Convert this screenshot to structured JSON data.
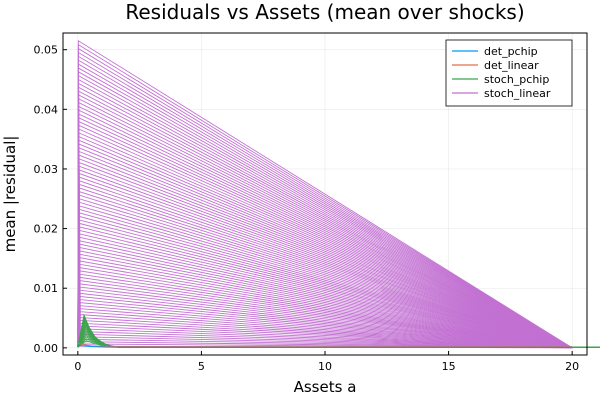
{
  "chart_data": {
    "type": "line",
    "title": "Residuals vs Assets (mean over shocks)",
    "xlabel": "Assets a",
    "ylabel": "mean |residual|",
    "xlim": [
      -0.6,
      20.6
    ],
    "ylim": [
      -0.0012,
      0.0528
    ],
    "xticks": [
      0,
      5,
      10,
      15,
      20
    ],
    "xtick_labels": [
      "0",
      "5",
      "10",
      "15",
      "20"
    ],
    "yticks": [
      0.0,
      0.01,
      0.02,
      0.03,
      0.04,
      0.05
    ],
    "ytick_labels": [
      "0.00",
      "0.01",
      "0.02",
      "0.03",
      "0.04",
      "0.05"
    ],
    "grid": true,
    "legend_position": "top-right",
    "series": [
      {
        "name": "det_pchip",
        "color": "#009AFA",
        "points": [
          [
            0,
            0.0005
          ],
          [
            0.25,
            0.0003
          ],
          [
            0.6,
            0.0002
          ],
          [
            1.5,
            0.0001
          ],
          [
            5,
            0.0001
          ],
          [
            10,
            0.0001
          ],
          [
            20,
            0.0001
          ]
        ]
      },
      {
        "name": "det_linear",
        "color": "#E36F47",
        "points": [
          [
            0,
            0.0008
          ],
          [
            0.25,
            0.0005
          ],
          [
            0.6,
            0.0003
          ],
          [
            1.5,
            0.0002
          ],
          [
            5,
            0.0002
          ],
          [
            10,
            0.0002
          ],
          [
            20,
            0.0002
          ]
        ]
      },
      {
        "name": "stoch_pchip",
        "color": "#3EA44E",
        "points": [
          [
            0,
            0.0002
          ],
          [
            0.25,
            0.0055
          ],
          [
            0.45,
            0.0035
          ],
          [
            0.7,
            0.0018
          ],
          [
            1.0,
            0.0008
          ],
          [
            1.3,
            0.0002
          ],
          [
            5,
            0.0001
          ],
          [
            20,
            0.0001
          ]
        ]
      },
      {
        "name": "stoch_linear",
        "color": "#C271D2",
        "start_peak": 0.0515,
        "end_x": 20
      }
    ]
  }
}
